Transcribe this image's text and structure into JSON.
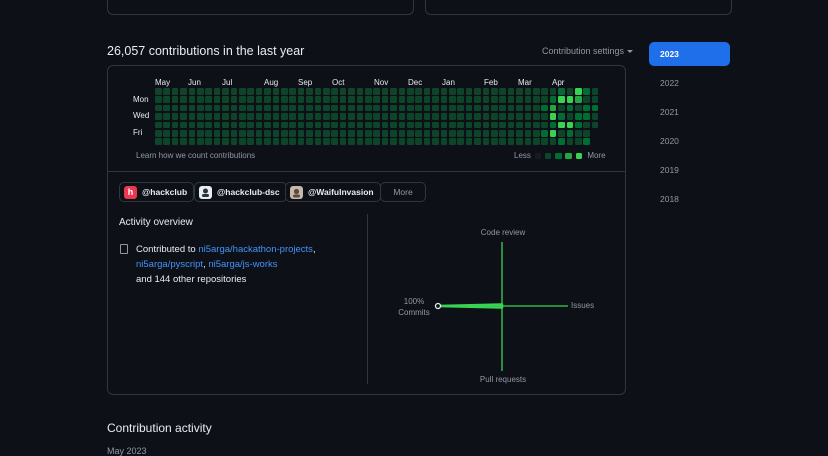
{
  "contributions": {
    "heading": "26,057 contributions in the last year",
    "settings_label": "Contribution settings",
    "months": [
      "May",
      "Jun",
      "Jul",
      "Aug",
      "Sep",
      "Oct",
      "Nov",
      "Dec",
      "Jan",
      "Feb",
      "Mar",
      "Apr"
    ],
    "days": [
      "Mon",
      "Wed",
      "Fri"
    ],
    "learn_link": "Learn how we count contributions",
    "legend_less": "Less",
    "legend_more": "More",
    "colors": {
      "level0": "#161b22",
      "level1": "#0e4429",
      "level2": "#006d32",
      "level3": "#26a641",
      "level4": "#39d353"
    }
  },
  "orgs": [
    {
      "name": "@hackclub",
      "avatar_letter": "h",
      "avatar_color": "#ec3750"
    },
    {
      "name": "@hackclub-dsc",
      "avatar_letter": "",
      "avatar_color": "#e6edf3"
    },
    {
      "name": "@WaifuInvasion",
      "avatar_letter": "",
      "avatar_color": "#c8b8a8"
    }
  ],
  "more_label": "More",
  "activity_overview": {
    "title": "Activity overview",
    "prefix": "Contributed to ",
    "repos": [
      "ni5arga/hackathon-projects",
      "ni5arga/pyscript",
      "ni5arga/js-works"
    ],
    "sep1": ",",
    "sep2": ", ",
    "suffix": "and 144 other repositories"
  },
  "axes": {
    "code_review": "Code review",
    "issues": "Issues",
    "pull_requests": "Pull requests",
    "commits_pct": "100%",
    "commits": "Commits",
    "values": {
      "commits": 100,
      "issues": 0,
      "pull_requests": 0,
      "code_review": 0
    },
    "line_color": "#39d353"
  },
  "years": [
    "2023",
    "2022",
    "2021",
    "2020",
    "2019",
    "2018"
  ],
  "selected_year": "2023",
  "activity_heading": "Contribution activity",
  "cut_text": "May 2023"
}
